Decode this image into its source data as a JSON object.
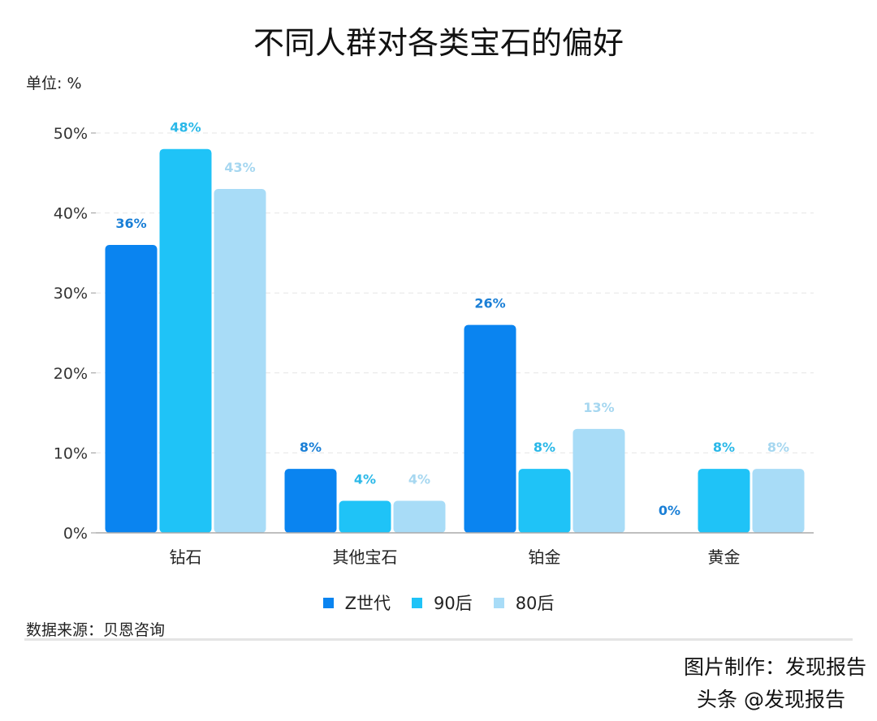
{
  "title": "不同人群对各类宝石的偏好",
  "unit": "单位: %",
  "source": "数据来源：贝恩咨询",
  "watermark": {
    "credit": "图片制作：发现报告",
    "platform": "头条 @发现报告"
  },
  "chart_data": {
    "type": "bar",
    "title": "不同人群对各类宝石的偏好",
    "categories": [
      "钻石",
      "其他宝石",
      "铂金",
      "黄金"
    ],
    "series": [
      {
        "name": "Z世代",
        "values": [
          36,
          8,
          26,
          0
        ],
        "color": "#0a84f0",
        "label_color": "#1a7fd6"
      },
      {
        "name": "90后",
        "values": [
          48,
          4,
          8,
          8
        ],
        "color": "#1fc3f7",
        "label_color": "#2ab8e8"
      },
      {
        "name": "80后",
        "values": [
          43,
          4,
          13,
          8
        ],
        "color": "#a8dcf7",
        "label_color": "#a6d7f0"
      }
    ],
    "yticks": [
      "0%",
      "10%",
      "20%",
      "30%",
      "40%",
      "50%"
    ],
    "ylim": [
      0,
      50
    ],
    "grid": true,
    "legend": "bottom"
  }
}
